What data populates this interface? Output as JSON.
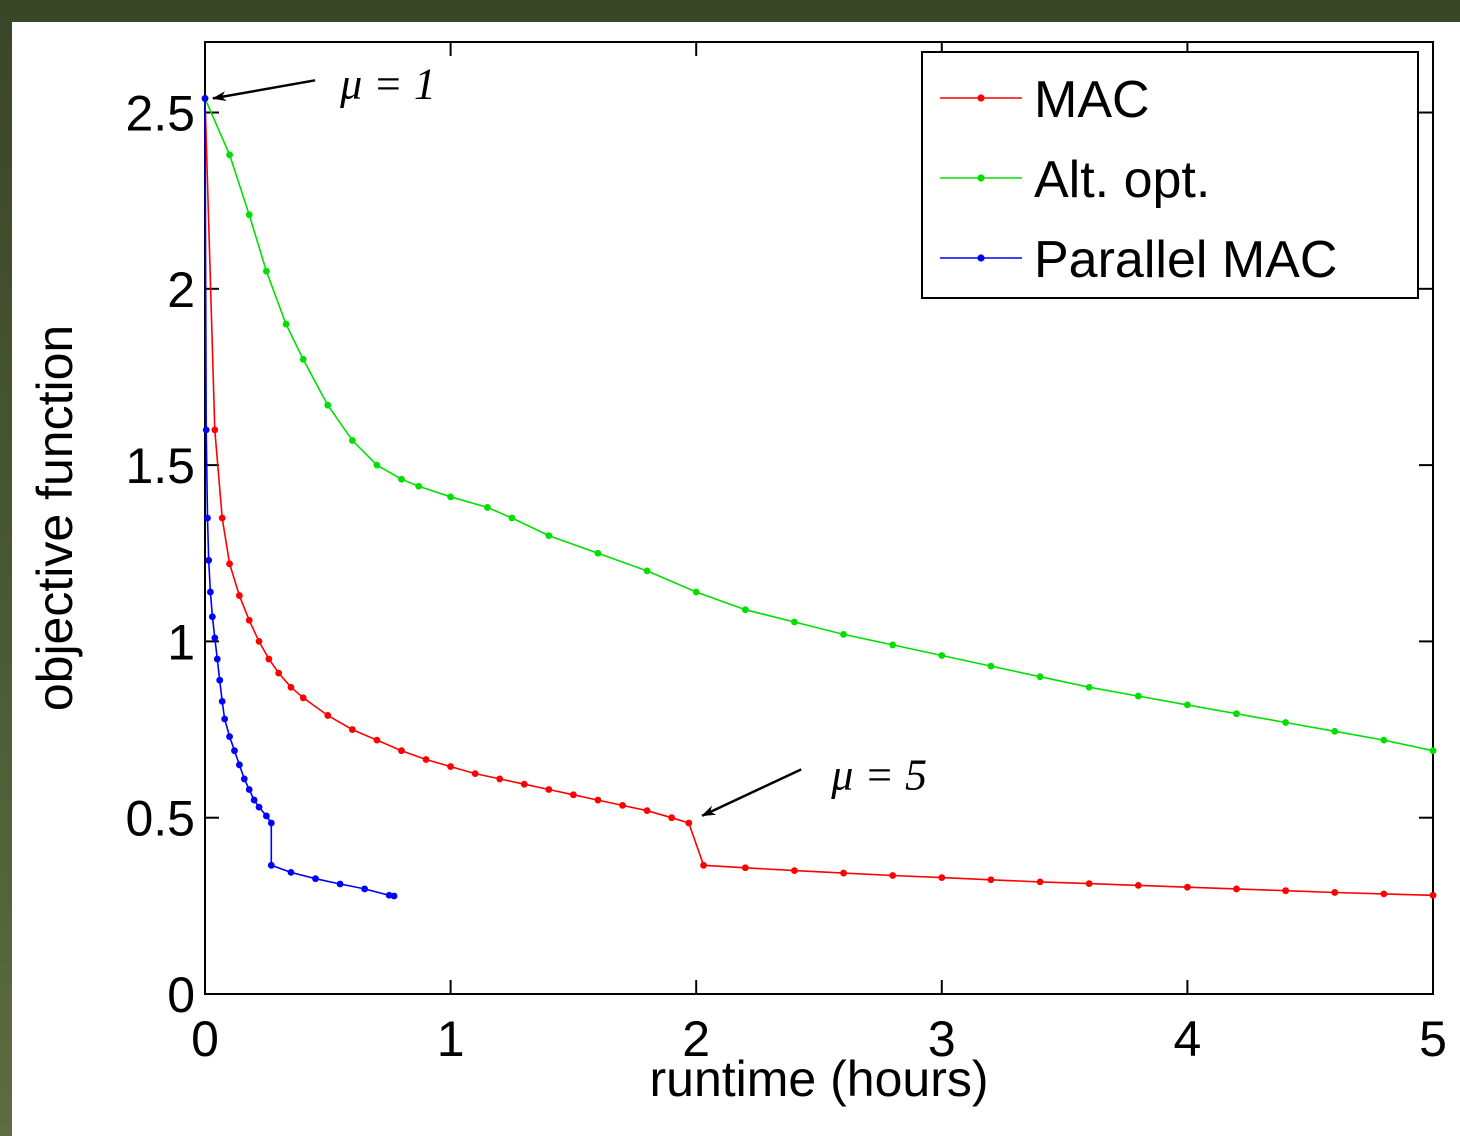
{
  "chart_data": {
    "type": "line",
    "xlabel": "runtime (hours)",
    "ylabel": "objective function",
    "xlim": [
      0,
      5
    ],
    "ylim": [
      0,
      2.7
    ],
    "xticks": [
      0,
      1,
      2,
      3,
      4,
      5
    ],
    "xtick_labels": [
      "0",
      "1",
      "2",
      "3",
      "4",
      "5"
    ],
    "yticks": [
      0,
      0.5,
      1,
      1.5,
      2,
      2.5
    ],
    "ytick_labels": [
      "0",
      "0.5",
      "1",
      "1.5",
      "2",
      "2.5"
    ],
    "grid": false,
    "legend": "top-right",
    "series": [
      {
        "name": "MAC",
        "color": "#ff0000",
        "marker": "dot",
        "points": [
          [
            0.0,
            2.54
          ],
          [
            0.04,
            1.6
          ],
          [
            0.07,
            1.35
          ],
          [
            0.1,
            1.22
          ],
          [
            0.14,
            1.13
          ],
          [
            0.18,
            1.06
          ],
          [
            0.22,
            1.0
          ],
          [
            0.26,
            0.95
          ],
          [
            0.3,
            0.91
          ],
          [
            0.35,
            0.87
          ],
          [
            0.4,
            0.84
          ],
          [
            0.5,
            0.79
          ],
          [
            0.6,
            0.75
          ],
          [
            0.7,
            0.72
          ],
          [
            0.8,
            0.69
          ],
          [
            0.9,
            0.665
          ],
          [
            1.0,
            0.645
          ],
          [
            1.1,
            0.625
          ],
          [
            1.2,
            0.61
          ],
          [
            1.3,
            0.595
          ],
          [
            1.4,
            0.58
          ],
          [
            1.5,
            0.565
          ],
          [
            1.6,
            0.55
          ],
          [
            1.7,
            0.535
          ],
          [
            1.8,
            0.52
          ],
          [
            1.9,
            0.5
          ],
          [
            1.97,
            0.485
          ],
          [
            2.03,
            0.365
          ],
          [
            2.2,
            0.358
          ],
          [
            2.4,
            0.35
          ],
          [
            2.6,
            0.343
          ],
          [
            2.8,
            0.336
          ],
          [
            3.0,
            0.33
          ],
          [
            3.2,
            0.324
          ],
          [
            3.4,
            0.318
          ],
          [
            3.6,
            0.313
          ],
          [
            3.8,
            0.308
          ],
          [
            4.0,
            0.303
          ],
          [
            4.2,
            0.298
          ],
          [
            4.4,
            0.293
          ],
          [
            4.6,
            0.288
          ],
          [
            4.8,
            0.284
          ],
          [
            5.0,
            0.28
          ]
        ]
      },
      {
        "name": "Alt. opt.",
        "color": "#00e000",
        "marker": "dot",
        "points": [
          [
            0.0,
            2.54
          ],
          [
            0.1,
            2.38
          ],
          [
            0.18,
            2.21
          ],
          [
            0.25,
            2.05
          ],
          [
            0.33,
            1.9
          ],
          [
            0.4,
            1.8
          ],
          [
            0.5,
            1.67
          ],
          [
            0.6,
            1.57
          ],
          [
            0.7,
            1.5
          ],
          [
            0.8,
            1.46
          ],
          [
            0.87,
            1.44
          ],
          [
            1.0,
            1.41
          ],
          [
            1.15,
            1.38
          ],
          [
            1.25,
            1.35
          ],
          [
            1.4,
            1.3
          ],
          [
            1.6,
            1.25
          ],
          [
            1.8,
            1.2
          ],
          [
            2.0,
            1.14
          ],
          [
            2.2,
            1.09
          ],
          [
            2.4,
            1.055
          ],
          [
            2.6,
            1.02
          ],
          [
            2.8,
            0.99
          ],
          [
            3.0,
            0.96
          ],
          [
            3.2,
            0.93
          ],
          [
            3.4,
            0.9
          ],
          [
            3.6,
            0.87
          ],
          [
            3.8,
            0.845
          ],
          [
            4.0,
            0.82
          ],
          [
            4.2,
            0.795
          ],
          [
            4.4,
            0.77
          ],
          [
            4.6,
            0.745
          ],
          [
            4.8,
            0.72
          ],
          [
            5.0,
            0.69
          ]
        ]
      },
      {
        "name": "Parallel MAC",
        "color": "#0000ff",
        "marker": "dot",
        "points": [
          [
            0.0,
            2.54
          ],
          [
            0.005,
            1.6
          ],
          [
            0.01,
            1.35
          ],
          [
            0.015,
            1.23
          ],
          [
            0.022,
            1.14
          ],
          [
            0.03,
            1.07
          ],
          [
            0.04,
            1.01
          ],
          [
            0.05,
            0.95
          ],
          [
            0.06,
            0.89
          ],
          [
            0.07,
            0.83
          ],
          [
            0.08,
            0.78
          ],
          [
            0.1,
            0.73
          ],
          [
            0.12,
            0.69
          ],
          [
            0.14,
            0.65
          ],
          [
            0.16,
            0.61
          ],
          [
            0.18,
            0.58
          ],
          [
            0.2,
            0.55
          ],
          [
            0.22,
            0.53
          ],
          [
            0.25,
            0.505
          ],
          [
            0.27,
            0.485
          ],
          [
            0.27,
            0.365
          ],
          [
            0.35,
            0.345
          ],
          [
            0.45,
            0.327
          ],
          [
            0.55,
            0.312
          ],
          [
            0.65,
            0.298
          ],
          [
            0.75,
            0.28
          ],
          [
            0.77,
            0.278
          ]
        ]
      }
    ],
    "annotations": [
      {
        "text": "μ = 1",
        "target": [
          0.0,
          2.54
        ],
        "text_at": [
          0.55,
          2.58
        ]
      },
      {
        "text": "μ = 5",
        "target": [
          2.0,
          0.5
        ],
        "text_at": [
          2.55,
          0.62
        ]
      }
    ]
  }
}
